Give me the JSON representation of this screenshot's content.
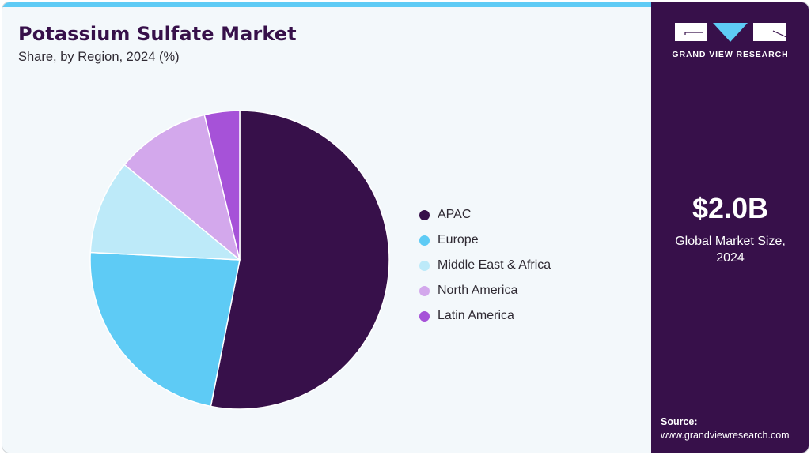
{
  "header": {
    "title": "Potassium Sulfate Market",
    "subtitle": "Share, by Region, 2024 (%)"
  },
  "colors": {
    "accent_bar": "#5ecbf5",
    "side_panel": "#37104a",
    "background": "#f3f8fb",
    "title": "#37104a"
  },
  "legend": {
    "items": [
      {
        "label": "APAC",
        "color": "#37104a"
      },
      {
        "label": "Europe",
        "color": "#5ecbf5"
      },
      {
        "label": "Middle East & Africa",
        "color": "#bdeaf9"
      },
      {
        "label": "North America",
        "color": "#d3a8ec"
      },
      {
        "label": "Latin America",
        "color": "#a652d8"
      }
    ]
  },
  "side_panel": {
    "logo_text": "GRAND VIEW RESEARCH",
    "market_value": "$2.0B",
    "market_label_line1": "Global Market Size,",
    "market_label_line2": "2024",
    "source_title": "Source:",
    "source_url": "www.grandviewresearch.com"
  },
  "chart_data": {
    "type": "pie",
    "title": "Potassium Sulfate Market",
    "subtitle": "Share, by Region, 2024 (%)",
    "categories": [
      "APAC",
      "Europe",
      "Middle East & Africa",
      "North America",
      "Latin America"
    ],
    "values": [
      53.1,
      22.7,
      10.2,
      10.2,
      3.8
    ],
    "colors": [
      "#37104a",
      "#5ecbf5",
      "#bdeaf9",
      "#d3a8ec",
      "#a652d8"
    ],
    "start_angle": "12 o'clock, clockwise",
    "legend_position": "right"
  }
}
